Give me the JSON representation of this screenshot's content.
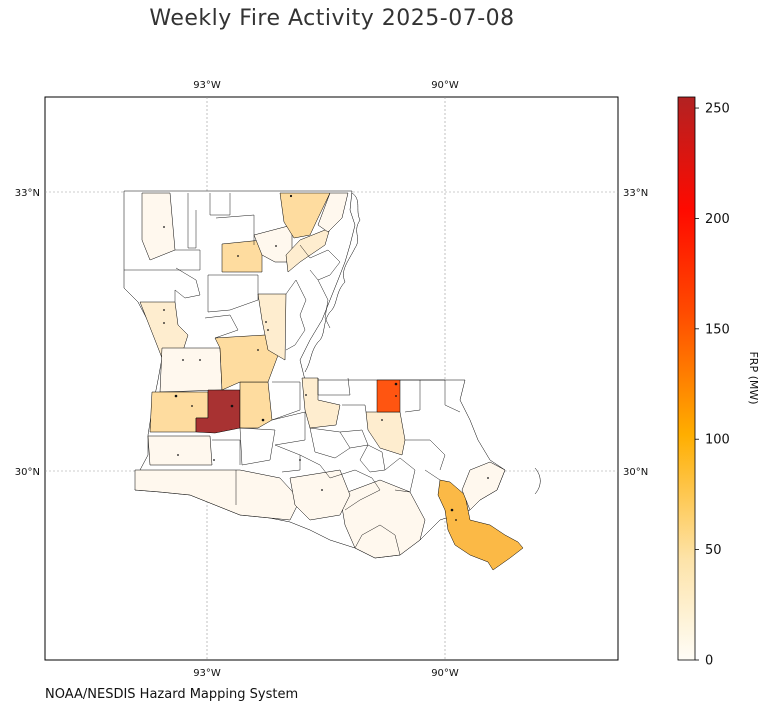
{
  "title": "Weekly Fire Activity 2025-07-08",
  "source": "NOAA/NESDIS Hazard Mapping System",
  "map": {
    "graticule": {
      "lon_labels": [
        "93°W",
        "90°W"
      ],
      "lat_labels": [
        "33°N",
        "30°N"
      ]
    },
    "colorbar": {
      "label": "FRP (MW)",
      "ticks": [
        "0",
        "50",
        "100",
        "150",
        "200",
        "250"
      ],
      "range": [
        0,
        255
      ],
      "colors": [
        "#fffdf7",
        "#fde6b0",
        "#ffae00",
        "#ff1500",
        "#b22222"
      ]
    },
    "parishes": [
      {
        "name": "rank1",
        "frp": 245,
        "color": "#a83232"
      },
      {
        "name": "rank2",
        "frp": 125,
        "color": "#ff5511"
      },
      {
        "name": "rank3",
        "frp": 60,
        "color": "#fbb946"
      },
      {
        "name": "rank4",
        "frp": 30,
        "color": "#fedc9f"
      },
      {
        "name": "rank5",
        "frp": 15,
        "color": "#feedcf"
      },
      {
        "name": "rank6",
        "frp": 5,
        "color": "#fff8ee"
      },
      {
        "name": "zero",
        "frp": 0,
        "color": "#ffffff"
      }
    ]
  }
}
